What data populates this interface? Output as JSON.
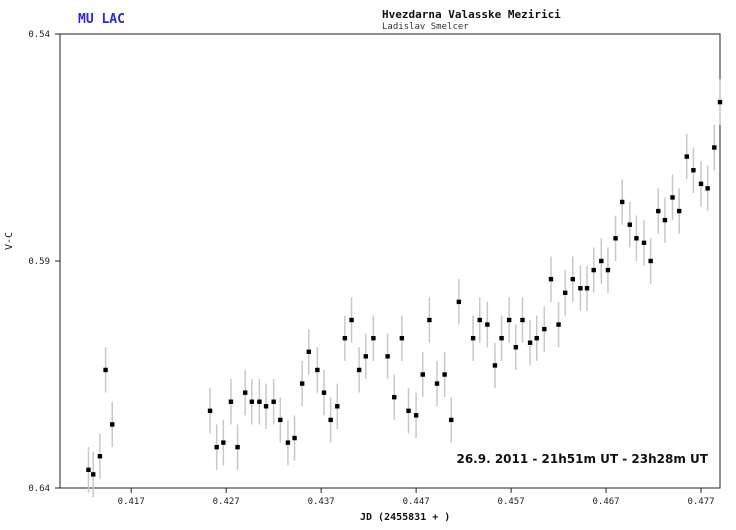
{
  "header": {
    "star_name": "MU LAC",
    "observatory": "Hvezdarna Valasske Mezirici",
    "observer": "Ladislav Smelcer"
  },
  "chart_data": {
    "type": "scatter",
    "title": "MU LAC",
    "xlabel": "JD (2455831 + )",
    "ylabel": "V-C",
    "xlim": [
      0.4095,
      0.479
    ],
    "ylim": [
      0.64,
      0.54
    ],
    "x_ticks": [
      0.417,
      0.427,
      0.437,
      0.447,
      0.457,
      0.467,
      0.477
    ],
    "x_tick_labels": [
      "0.417",
      "0.427",
      "0.437",
      "0.447",
      "0.457",
      "0.467",
      "0.477"
    ],
    "y_ticks": [
      0.54,
      0.59,
      0.64
    ],
    "y_tick_labels": [
      "0.54",
      "0.59",
      "0.64"
    ],
    "annotation": "26.9. 2011 - 21h51m UT - 23h28m UT",
    "error_bar": 0.005,
    "points": [
      {
        "x": 0.4125,
        "y": 0.636
      },
      {
        "x": 0.413,
        "y": 0.637
      },
      {
        "x": 0.4137,
        "y": 0.633
      },
      {
        "x": 0.4143,
        "y": 0.614
      },
      {
        "x": 0.415,
        "y": 0.626
      },
      {
        "x": 0.4253,
        "y": 0.623
      },
      {
        "x": 0.426,
        "y": 0.631
      },
      {
        "x": 0.4267,
        "y": 0.63
      },
      {
        "x": 0.4275,
        "y": 0.621
      },
      {
        "x": 0.4282,
        "y": 0.631
      },
      {
        "x": 0.429,
        "y": 0.619
      },
      {
        "x": 0.4297,
        "y": 0.621
      },
      {
        "x": 0.4305,
        "y": 0.621
      },
      {
        "x": 0.4312,
        "y": 0.622
      },
      {
        "x": 0.432,
        "y": 0.621
      },
      {
        "x": 0.4327,
        "y": 0.625
      },
      {
        "x": 0.4335,
        "y": 0.63
      },
      {
        "x": 0.4342,
        "y": 0.629
      },
      {
        "x": 0.435,
        "y": 0.617
      },
      {
        "x": 0.4357,
        "y": 0.61
      },
      {
        "x": 0.4366,
        "y": 0.614
      },
      {
        "x": 0.4373,
        "y": 0.619
      },
      {
        "x": 0.438,
        "y": 0.625
      },
      {
        "x": 0.4387,
        "y": 0.622
      },
      {
        "x": 0.4395,
        "y": 0.607
      },
      {
        "x": 0.4402,
        "y": 0.603
      },
      {
        "x": 0.441,
        "y": 0.614
      },
      {
        "x": 0.4417,
        "y": 0.611
      },
      {
        "x": 0.4425,
        "y": 0.607
      },
      {
        "x": 0.444,
        "y": 0.611
      },
      {
        "x": 0.4447,
        "y": 0.62
      },
      {
        "x": 0.4455,
        "y": 0.607
      },
      {
        "x": 0.4462,
        "y": 0.623
      },
      {
        "x": 0.447,
        "y": 0.624
      },
      {
        "x": 0.4477,
        "y": 0.615
      },
      {
        "x": 0.4484,
        "y": 0.603
      },
      {
        "x": 0.4492,
        "y": 0.617
      },
      {
        "x": 0.45,
        "y": 0.615
      },
      {
        "x": 0.4507,
        "y": 0.625
      },
      {
        "x": 0.4515,
        "y": 0.599
      },
      {
        "x": 0.453,
        "y": 0.607
      },
      {
        "x": 0.4537,
        "y": 0.603
      },
      {
        "x": 0.4545,
        "y": 0.604
      },
      {
        "x": 0.4553,
        "y": 0.613
      },
      {
        "x": 0.456,
        "y": 0.607
      },
      {
        "x": 0.4568,
        "y": 0.603
      },
      {
        "x": 0.4575,
        "y": 0.609
      },
      {
        "x": 0.4582,
        "y": 0.603
      },
      {
        "x": 0.459,
        "y": 0.608
      },
      {
        "x": 0.4597,
        "y": 0.607
      },
      {
        "x": 0.4605,
        "y": 0.605
      },
      {
        "x": 0.4612,
        "y": 0.594
      },
      {
        "x": 0.462,
        "y": 0.604
      },
      {
        "x": 0.4627,
        "y": 0.597
      },
      {
        "x": 0.4635,
        "y": 0.594
      },
      {
        "x": 0.4643,
        "y": 0.596
      },
      {
        "x": 0.465,
        "y": 0.596
      },
      {
        "x": 0.4657,
        "y": 0.592
      },
      {
        "x": 0.4665,
        "y": 0.59
      },
      {
        "x": 0.4672,
        "y": 0.592
      },
      {
        "x": 0.468,
        "y": 0.585
      },
      {
        "x": 0.4687,
        "y": 0.577
      },
      {
        "x": 0.4695,
        "y": 0.582
      },
      {
        "x": 0.4702,
        "y": 0.585
      },
      {
        "x": 0.471,
        "y": 0.586
      },
      {
        "x": 0.4717,
        "y": 0.59
      },
      {
        "x": 0.4725,
        "y": 0.579
      },
      {
        "x": 0.4732,
        "y": 0.581
      },
      {
        "x": 0.474,
        "y": 0.576
      },
      {
        "x": 0.4747,
        "y": 0.579
      },
      {
        "x": 0.4755,
        "y": 0.567
      },
      {
        "x": 0.4762,
        "y": 0.57
      },
      {
        "x": 0.477,
        "y": 0.573
      },
      {
        "x": 0.4777,
        "y": 0.574
      },
      {
        "x": 0.4784,
        "y": 0.565
      },
      {
        "x": 0.479,
        "y": 0.555
      }
    ]
  }
}
